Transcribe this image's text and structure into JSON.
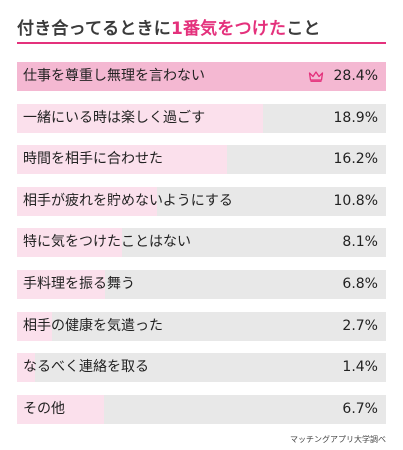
{
  "title": {
    "before": "付き合ってるときに",
    "highlight": "1番気をつけた",
    "after": "こと"
  },
  "source": "マッチングアプリ大学調べ",
  "colors": {
    "accent": "#e4317c",
    "bar_top": "#f4b8d2",
    "bar": "#fbe0ec",
    "track": "#e8e8e8"
  },
  "chart_data": {
    "type": "bar",
    "orientation": "horizontal",
    "title": "付き合ってるときに1番気をつけたこと",
    "categories": [
      "仕事を尊重し無理を言わない",
      "一緒にいる時は楽しく過ごす",
      "時間を相手に合わせた",
      "相手が疲れを貯めないようにする",
      "特に気をつけたことはない",
      "手料理を振る舞う",
      "相手の健康を気遣った",
      "なるべく連絡を取る",
      "その他"
    ],
    "values": [
      28.4,
      18.9,
      16.2,
      10.8,
      8.1,
      6.8,
      2.7,
      1.4,
      6.7
    ],
    "value_labels": [
      "28.4%",
      "18.9%",
      "16.2%",
      "10.8%",
      "8.1%",
      "6.8%",
      "2.7%",
      "1.4%",
      "6.7%"
    ],
    "unit": "%",
    "xlim": [
      0,
      28.4
    ],
    "highlight_index": 0,
    "highlight_icon": "crown-icon",
    "grid": false,
    "legend": "none"
  }
}
